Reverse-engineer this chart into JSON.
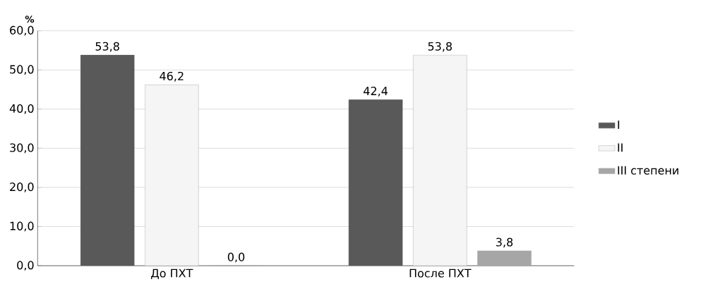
{
  "chart_data": {
    "type": "bar",
    "ylabel": "%",
    "categories": [
      "До ПХТ",
      "После ПХТ"
    ],
    "series": [
      {
        "name": "I",
        "color": "#595959",
        "values": [
          53.8,
          42.4
        ],
        "value_labels": [
          "53,8",
          "42,4"
        ]
      },
      {
        "name": "II",
        "color": "#f5f5f5",
        "values": [
          46.2,
          53.8
        ],
        "value_labels": [
          "46,2",
          "53,8"
        ]
      },
      {
        "name": "III степени",
        "color": "#a6a6a6",
        "values": [
          0.0,
          3.8
        ],
        "value_labels": [
          "0,0",
          "3,8"
        ]
      }
    ],
    "ylim": [
      0,
      60
    ],
    "yticks": [
      {
        "value": 0,
        "label": "0,0"
      },
      {
        "value": 10,
        "label": "10,0"
      },
      {
        "value": 20,
        "label": "20,0"
      },
      {
        "value": 30,
        "label": "30,0"
      },
      {
        "value": 40,
        "label": "40,0"
      },
      {
        "value": 50,
        "label": "50,0"
      },
      {
        "value": 60,
        "label": "60,0"
      }
    ],
    "grid": "y",
    "legend": "right"
  }
}
